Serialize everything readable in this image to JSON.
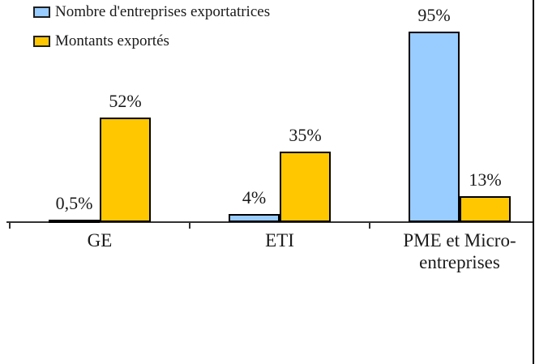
{
  "legend": {
    "items": [
      {
        "label": "Nombre d'entreprises exportatrices",
        "color": "#99CCFF"
      },
      {
        "label": "Montants exportés",
        "color": "#FFC700"
      }
    ]
  },
  "chart_data": {
    "type": "bar",
    "title": "",
    "xlabel": "",
    "ylabel": "",
    "ylim": [
      0,
      100
    ],
    "grid": false,
    "y_axis_visible": false,
    "legend_position": "top-left",
    "categories": [
      "GE",
      "ETI",
      "PME et Micro-entreprises"
    ],
    "categories_display": [
      "GE",
      "ETI",
      "PME et Micro-\nentreprises"
    ],
    "series": [
      {
        "name": "Nombre d'entreprises exportatrices",
        "color": "#99CCFF",
        "values": [
          0.5,
          4,
          95
        ],
        "labels": [
          "0,5%",
          "4%",
          "95%"
        ]
      },
      {
        "name": "Montants exportés",
        "color": "#FFC700",
        "values": [
          52,
          35,
          13
        ],
        "labels": [
          "52%",
          "35%",
          "13%"
        ]
      }
    ],
    "colors": {
      "bar_border": "#000000",
      "axis": "#333333",
      "text": "#1a1a1a",
      "background": "#ffffff"
    }
  }
}
